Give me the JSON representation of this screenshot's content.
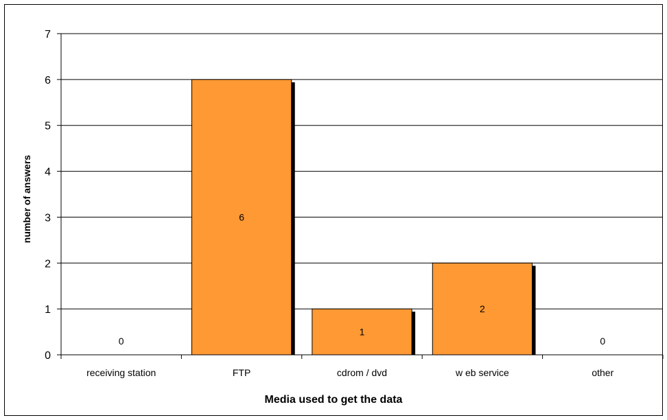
{
  "chart_data": {
    "type": "bar",
    "title": "",
    "xlabel": "Media used to get the data",
    "ylabel": "number of answers",
    "categories": [
      "receiving station",
      "FTP",
      "cdrom / dvd",
      "w eb service",
      "other"
    ],
    "values": [
      0,
      6,
      1,
      2,
      0
    ],
    "data_labels": [
      "0",
      "6",
      "1",
      "2",
      "0"
    ],
    "yticks": [
      "0",
      "1",
      "2",
      "3",
      "4",
      "5",
      "6",
      "7"
    ],
    "ylim": [
      0,
      7
    ],
    "grid": true,
    "legend": "none",
    "colors": {
      "bar": "#FF9933",
      "bar_border": "#000000",
      "bar_shadow": "#000000",
      "gridline": "#000000",
      "axis": "#000000",
      "frame": "#000000"
    }
  }
}
